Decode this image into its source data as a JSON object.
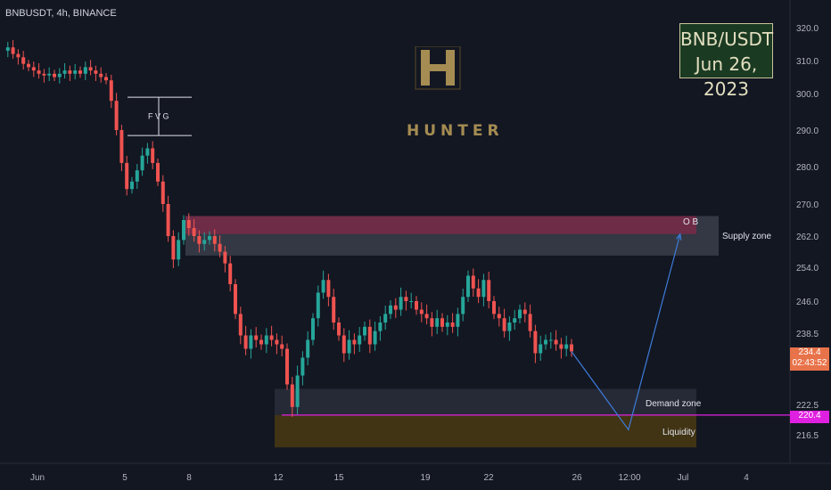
{
  "header": {
    "symbol_line": "BNBUSDT, 4h, BINANCE"
  },
  "date_box": {
    "pair": "BNB/USDT",
    "date": "Jun 26, 2023"
  },
  "logo": {
    "wordmark": "HUNTER"
  },
  "current_price": {
    "price": "234.4",
    "countdown": "02:43:52",
    "color": "#e8734a"
  },
  "liquidity_price": {
    "price": "220.4",
    "color": "#e020e0"
  },
  "chart_data": {
    "type": "candlestick",
    "title": "",
    "y_ticks": [
      "320.0",
      "310.0",
      "300.0",
      "290.0",
      "280.0",
      "270.0",
      "262.0",
      "254.0",
      "246.0",
      "238.5",
      "222.5",
      "216.5"
    ],
    "x_ticks": [
      "Jun",
      "5",
      "8",
      "12",
      "15",
      "19",
      "22",
      "26",
      "12:00",
      "Jul",
      "4"
    ],
    "zones": [
      {
        "name": "Supply zone",
        "label": "Supply zone",
        "top": 267,
        "bottom": 257,
        "color": "#3a3e4a"
      },
      {
        "name": "OB",
        "label": "O B",
        "top": 267,
        "bottom": 262.5,
        "color": "#7a2a48"
      },
      {
        "name": "Demand zone",
        "label": "Demand zone",
        "top": 226,
        "bottom": 220.4,
        "color": "#2a2e39"
      },
      {
        "name": "Liquidity",
        "label": "Liquidity",
        "top": 220.4,
        "bottom": 214,
        "color": "#4a3a12"
      }
    ],
    "annotations": [
      {
        "text": "F V G",
        "top": 299,
        "bottom": 288.5
      }
    ],
    "colors": {
      "up": "#26a69a",
      "down": "#ef5350",
      "projection": "#3d7bd9",
      "liquidity_line": "#e020e0"
    },
    "closes": [
      313,
      314,
      312,
      311,
      309,
      308,
      307,
      306,
      305.5,
      306,
      305,
      306,
      307,
      306,
      307,
      306,
      308,
      307,
      306,
      305,
      304,
      298,
      290,
      281,
      274,
      276,
      279,
      283,
      285,
      281,
      276,
      270,
      262,
      256,
      261,
      266,
      264,
      262,
      260,
      261,
      262,
      260,
      258,
      255,
      250,
      243,
      238,
      235,
      238,
      237,
      236,
      238,
      237,
      236,
      235,
      227,
      222,
      229,
      233,
      237,
      242,
      248,
      251,
      247,
      241,
      238,
      234,
      237,
      236,
      238,
      240,
      236,
      239,
      241,
      243,
      245,
      244,
      247,
      246,
      246,
      244,
      243,
      242,
      240,
      242,
      240,
      241,
      240,
      243,
      247,
      252,
      249,
      247,
      251,
      246,
      243,
      242,
      239,
      241,
      242,
      244,
      243,
      239,
      234,
      236,
      237,
      237,
      236,
      235,
      236,
      234.4
    ],
    "projection": [
      {
        "idx": 110,
        "price": 234.4
      },
      {
        "idx": 121,
        "price": 217.5
      },
      {
        "idx": 131,
        "price": 262.5
      }
    ]
  }
}
